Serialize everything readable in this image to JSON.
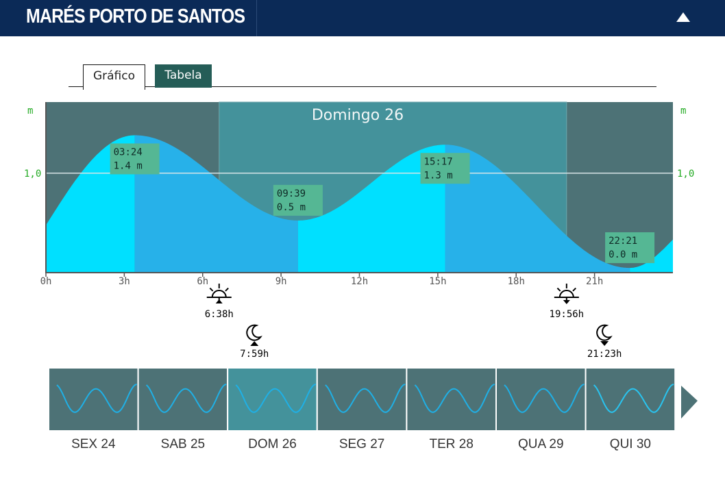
{
  "header": {
    "title": "MARÉS PORTO DE SANTOS",
    "collapse_icon": "triangle-up-icon"
  },
  "tabs": [
    {
      "label": "Gráfico",
      "active": true
    },
    {
      "label": "Tabela",
      "active": false
    }
  ],
  "chart_data": {
    "type": "area",
    "title": "Domingo 26",
    "y_unit": "m",
    "y_ticks": [
      {
        "value": 1.0,
        "label": "1,0"
      }
    ],
    "xlim": [
      0,
      24
    ],
    "ylim": [
      -0.05,
      1.75
    ],
    "x_ticks": [
      {
        "h": 0,
        "label": "0h"
      },
      {
        "h": 3,
        "label": "3h"
      },
      {
        "h": 6,
        "label": "6h"
      },
      {
        "h": 9,
        "label": "9h"
      },
      {
        "h": 12,
        "label": "12h"
      },
      {
        "h": 15,
        "label": "15h"
      },
      {
        "h": 18,
        "label": "18h"
      },
      {
        "h": 21,
        "label": "21h"
      }
    ],
    "tide_extremes": [
      {
        "time": "03:24",
        "h": 3.4,
        "height": 1.4,
        "height_label": "1.4 m"
      },
      {
        "time": "09:39",
        "h": 9.65,
        "height": 0.5,
        "height_label": "0.5 m"
      },
      {
        "time": "15:17",
        "h": 15.28,
        "height": 1.3,
        "height_label": "1.3 m"
      },
      {
        "time": "22:21",
        "h": 22.35,
        "height": 0.0,
        "height_label": "0.0 m"
      }
    ],
    "start_height": 0.45,
    "end_height": 0.3,
    "sunrise": {
      "h": 6.63,
      "label": "6:38h",
      "icon": "sunrise-icon"
    },
    "sunset": {
      "h": 19.93,
      "label": "19:56h",
      "icon": "sunset-icon"
    },
    "moonrise": {
      "h": 7.98,
      "label": "7:59h",
      "icon": "moonrise-icon"
    },
    "moonset": {
      "h": 21.38,
      "label": "21:23h",
      "icon": "moonset-icon"
    },
    "colors": {
      "night": "#4d7276",
      "day": "#44929b",
      "tide_rising": "#00e0ff",
      "tide_falling": "#27b1e9",
      "label_box": "#55b794",
      "axis_label": "#22aa22"
    }
  },
  "days": [
    {
      "label": "SEX 24",
      "selected": false
    },
    {
      "label": "SAB 25",
      "selected": false
    },
    {
      "label": "DOM 26",
      "selected": true
    },
    {
      "label": "SEG 27",
      "selected": false
    },
    {
      "label": "TER 28",
      "selected": false
    },
    {
      "label": "QUA 29",
      "selected": false
    },
    {
      "label": "QUI 30",
      "selected": false
    }
  ],
  "next_icon": "arrow-right-icon"
}
